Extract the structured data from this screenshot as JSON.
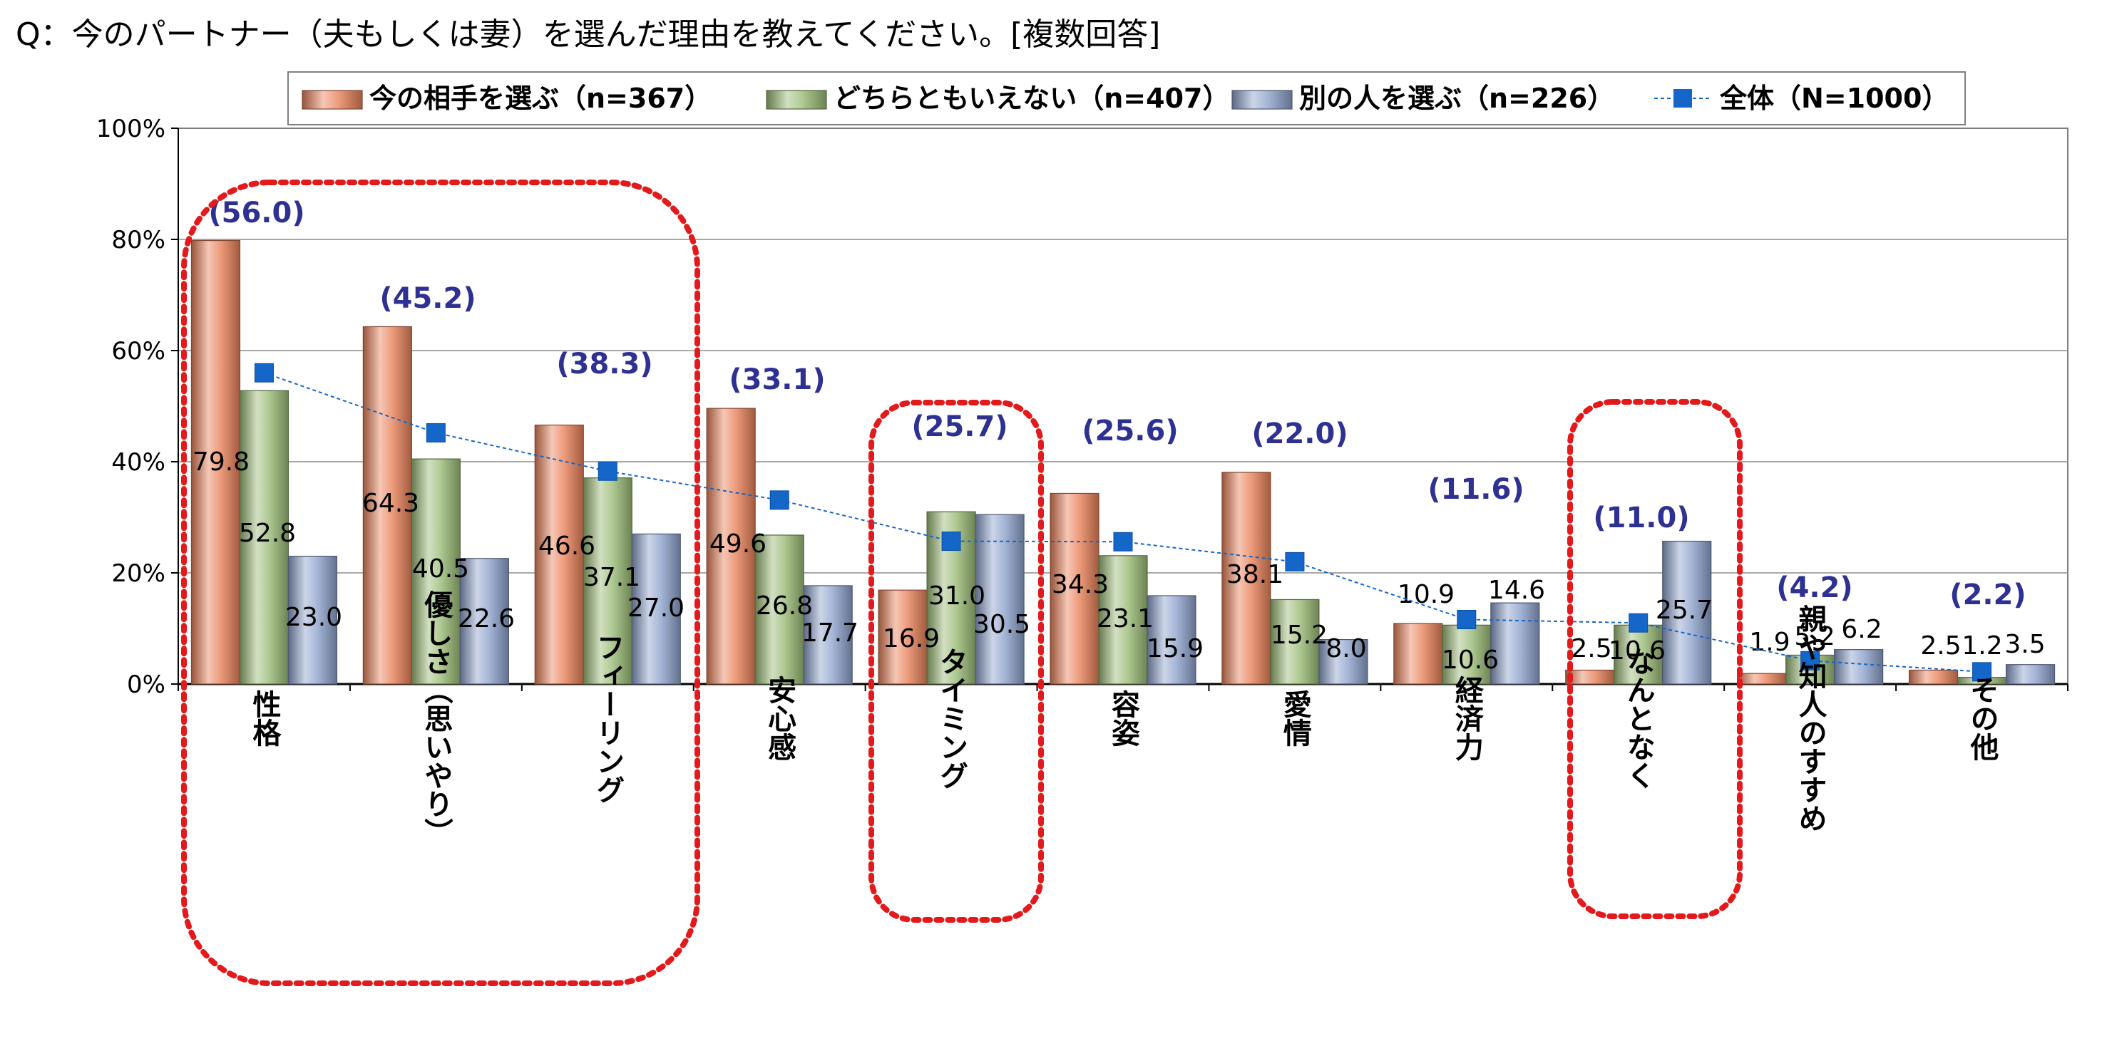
{
  "question": "Q：今のパートナー（夫もしくは妻）を選んだ理由を教えてください。[複数回答]",
  "chart_data": {
    "type": "bar",
    "categories": [
      "性格",
      "優しさ（思いやり）",
      "フィーリング",
      "安心感",
      "タイミング",
      "容姿",
      "愛情",
      "経済力",
      "なんとなく",
      "親や知人のすすめ",
      "その他"
    ],
    "series": [
      {
        "name": "今の相手を選ぶ（n=367）",
        "values": [
          79.8,
          64.3,
          46.6,
          49.6,
          16.9,
          34.3,
          38.1,
          10.9,
          2.5,
          1.9,
          2.5
        ],
        "color": "#e8825a"
      },
      {
        "name": "どちらともいえない（n=407）",
        "values": [
          52.8,
          40.5,
          37.1,
          26.8,
          31.0,
          23.1,
          15.2,
          10.6,
          10.6,
          5.2,
          1.2
        ],
        "color": "#9bbb77"
      },
      {
        "name": "別の人を選ぶ（n=226）",
        "values": [
          23.0,
          22.6,
          27.0,
          17.7,
          30.5,
          15.9,
          8.0,
          14.6,
          25.7,
          6.2,
          3.5
        ],
        "color": "#8ea2cc"
      }
    ],
    "line_series": {
      "name": "全体（N=1000）",
      "values": [
        56.0,
        45.2,
        38.3,
        33.1,
        25.7,
        25.6,
        22.0,
        11.6,
        11.0,
        4.2,
        2.2
      ],
      "color": "#1466c8"
    },
    "line_value_labels": [
      "(56.0)",
      "(45.2)",
      "(38.3)",
      "(33.1)",
      "(25.7)",
      "(25.6)",
      "(22.0)",
      "(11.6)",
      "(11.0)",
      "(4.2)",
      "(2.2)"
    ],
    "yticks": [
      "0%",
      "20%",
      "40%",
      "60%",
      "80%",
      "100%"
    ],
    "ylim": [
      0,
      100
    ],
    "grid": true,
    "legend": "top",
    "highlight_groups": [
      [
        0,
        2
      ],
      [
        4,
        4
      ],
      [
        8,
        8
      ]
    ]
  }
}
